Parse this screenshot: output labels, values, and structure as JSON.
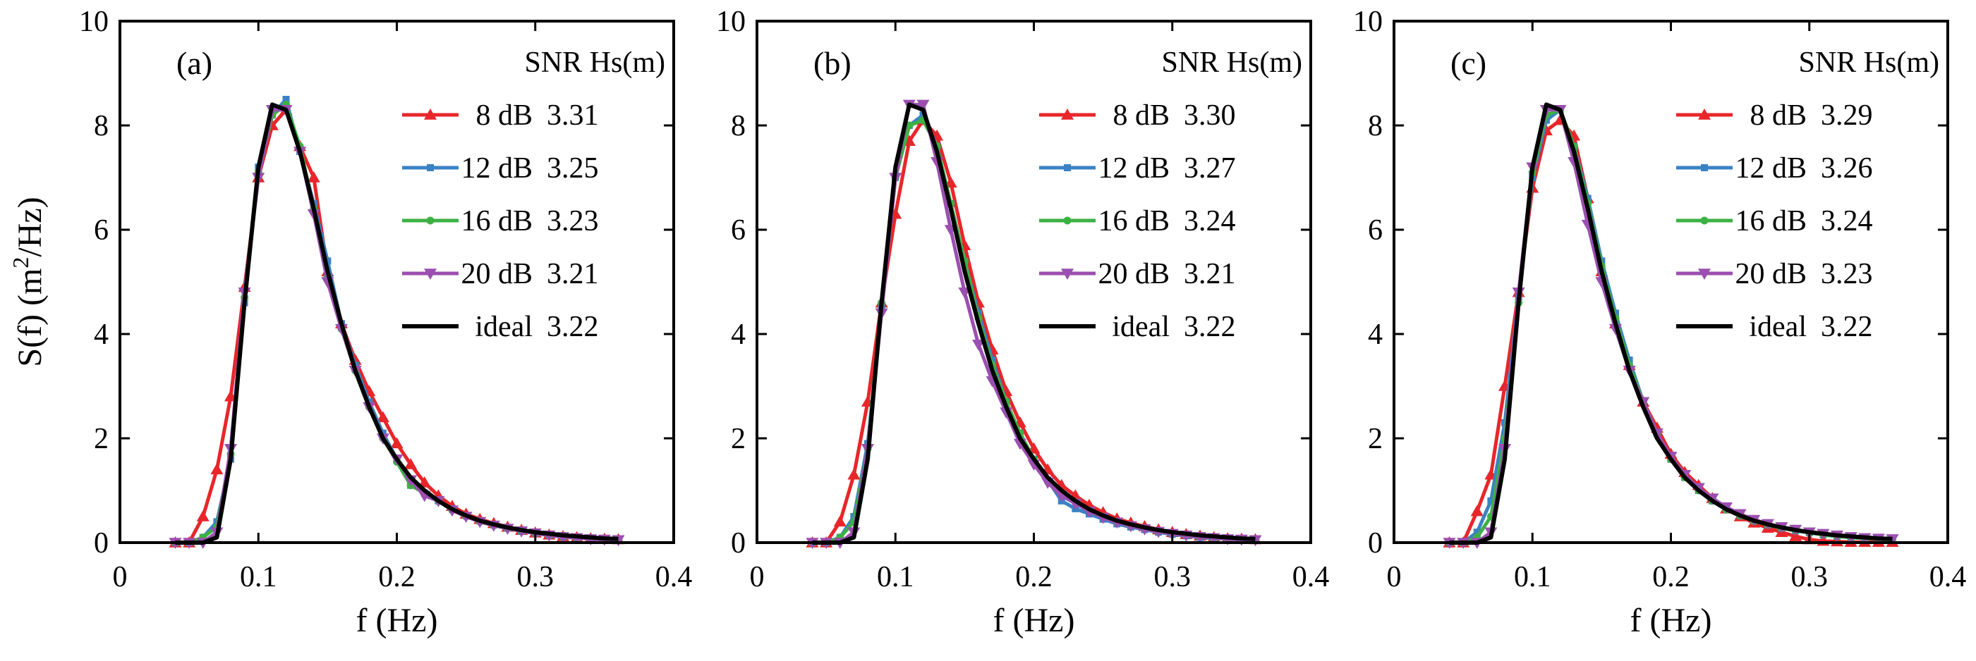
{
  "chart_data": [
    {
      "type": "line",
      "panel_label": "(a)",
      "xlabel": "f (Hz)",
      "ylabel": "S(f) (m2/Hz)",
      "xlim": [
        0,
        0.4
      ],
      "ylim": [
        0,
        10
      ],
      "xticks": [
        "0",
        "0.1",
        "0.2",
        "0.3",
        "0.4"
      ],
      "yticks": [
        "0",
        "2",
        "4",
        "6",
        "8",
        "10"
      ],
      "legend_title": "SNR Hs(m)",
      "legend_position": "top-right",
      "x": [
        0.04,
        0.05,
        0.06,
        0.07,
        0.08,
        0.09,
        0.1,
        0.11,
        0.12,
        0.13,
        0.14,
        0.15,
        0.16,
        0.17,
        0.18,
        0.19,
        0.2,
        0.21,
        0.22,
        0.23,
        0.24,
        0.25,
        0.26,
        0.27,
        0.28,
        0.29,
        0.3,
        0.31,
        0.32,
        0.33,
        0.34,
        0.35,
        0.36
      ],
      "series": [
        {
          "name": "8 dB",
          "hs": "3.31",
          "color": "#e8262a",
          "marker": "triangle-up",
          "values": [
            0,
            0,
            0.5,
            1.4,
            2.8,
            4.9,
            7.0,
            8.0,
            8.3,
            7.6,
            7.0,
            5.2,
            4.2,
            3.5,
            2.9,
            2.4,
            1.9,
            1.5,
            1.15,
            0.9,
            0.7,
            0.55,
            0.45,
            0.37,
            0.3,
            0.24,
            0.19,
            0.15,
            0.12,
            0.1,
            0.08,
            0.07,
            0.06
          ]
        },
        {
          "name": "12 dB",
          "hs": "3.25",
          "color": "#3a82c4",
          "marker": "square",
          "values": [
            0,
            0,
            0.1,
            0.4,
            1.6,
            4.6,
            7.2,
            8.2,
            8.5,
            7.5,
            6.5,
            5.4,
            4.2,
            3.4,
            2.7,
            2.1,
            1.6,
            1.1,
            0.95,
            0.8,
            0.65,
            0.52,
            0.42,
            0.34,
            0.28,
            0.22,
            0.18,
            0.14,
            0.11,
            0.09,
            0.07,
            0.06,
            0.05
          ]
        },
        {
          "name": "16 dB",
          "hs": "3.23",
          "color": "#3cb143",
          "marker": "circle",
          "values": [
            0,
            0,
            0.1,
            0.3,
            1.7,
            4.7,
            7.1,
            8.2,
            8.4,
            7.6,
            6.4,
            5.1,
            4.1,
            3.3,
            2.6,
            2.0,
            1.55,
            1.1,
            0.95,
            0.8,
            0.62,
            0.5,
            0.4,
            0.33,
            0.27,
            0.22,
            0.18,
            0.14,
            0.11,
            0.09,
            0.07,
            0.06,
            0.05
          ]
        },
        {
          "name": "20 dB",
          "hs": "3.21",
          "color": "#9b4fb0",
          "marker": "triangle-down",
          "values": [
            0,
            0,
            0,
            0.2,
            1.8,
            4.8,
            7.0,
            8.3,
            8.3,
            7.5,
            6.3,
            5.0,
            4.1,
            3.3,
            2.6,
            2.0,
            1.6,
            1.2,
            0.9,
            0.8,
            0.62,
            0.5,
            0.4,
            0.33,
            0.27,
            0.22,
            0.18,
            0.14,
            0.11,
            0.09,
            0.07,
            0.06,
            0.05
          ]
        },
        {
          "name": "ideal",
          "hs": "3.22",
          "color": "#000000",
          "marker": "none",
          "values": [
            0,
            0,
            0,
            0.1,
            1.6,
            4.6,
            7.2,
            8.4,
            8.3,
            7.5,
            6.4,
            5.2,
            4.2,
            3.3,
            2.6,
            2.0,
            1.6,
            1.25,
            1.0,
            0.8,
            0.64,
            0.52,
            0.42,
            0.35,
            0.29,
            0.24,
            0.2,
            0.17,
            0.14,
            0.12,
            0.1,
            0.08,
            0.07
          ]
        }
      ]
    },
    {
      "type": "line",
      "panel_label": "(b)",
      "xlabel": "f (Hz)",
      "ylabel": "",
      "xlim": [
        0,
        0.4
      ],
      "ylim": [
        0,
        10
      ],
      "xticks": [
        "0",
        "0.1",
        "0.2",
        "0.3",
        "0.4"
      ],
      "yticks": [
        "0",
        "2",
        "4",
        "6",
        "8",
        "10"
      ],
      "legend_title": "SNR Hs(m)",
      "legend_position": "top-right",
      "x": [
        0.04,
        0.05,
        0.06,
        0.07,
        0.08,
        0.09,
        0.1,
        0.11,
        0.12,
        0.13,
        0.14,
        0.15,
        0.16,
        0.17,
        0.18,
        0.19,
        0.2,
        0.21,
        0.22,
        0.23,
        0.24,
        0.25,
        0.26,
        0.27,
        0.28,
        0.29,
        0.3,
        0.31,
        0.32,
        0.33,
        0.34,
        0.35,
        0.36
      ],
      "series": [
        {
          "name": "8 dB",
          "hs": "3.30",
          "color": "#e8262a",
          "marker": "triangle-up",
          "values": [
            0,
            0,
            0.4,
            1.3,
            2.7,
            4.6,
            6.3,
            7.7,
            8.1,
            7.8,
            6.9,
            5.7,
            4.6,
            3.7,
            2.9,
            2.3,
            1.8,
            1.4,
            1.1,
            0.9,
            0.72,
            0.58,
            0.46,
            0.38,
            0.31,
            0.25,
            0.2,
            0.16,
            0.13,
            0.1,
            0.08,
            0.07,
            0.06
          ]
        },
        {
          "name": "12 dB",
          "hs": "3.27",
          "color": "#3a82c4",
          "marker": "square",
          "values": [
            0,
            0,
            0.1,
            0.5,
            1.9,
            4.5,
            7.0,
            8.0,
            8.2,
            7.6,
            6.5,
            5.4,
            4.4,
            3.5,
            2.7,
            2.1,
            1.6,
            1.2,
            0.8,
            0.65,
            0.55,
            0.45,
            0.36,
            0.3,
            0.25,
            0.2,
            0.16,
            0.13,
            0.1,
            0.08,
            0.07,
            0.06,
            0.05
          ]
        },
        {
          "name": "16 dB",
          "hs": "3.24",
          "color": "#3cb143",
          "marker": "circle",
          "values": [
            0,
            0,
            0.1,
            0.4,
            1.8,
            4.6,
            7.0,
            8.0,
            8.1,
            7.6,
            6.5,
            5.4,
            4.3,
            3.4,
            2.7,
            2.1,
            1.6,
            1.2,
            0.95,
            0.78,
            0.62,
            0.5,
            0.4,
            0.33,
            0.27,
            0.22,
            0.18,
            0.14,
            0.11,
            0.09,
            0.07,
            0.06,
            0.05
          ]
        },
        {
          "name": "20 dB",
          "hs": "3.21",
          "color": "#9b4fb0",
          "marker": "triangle-down",
          "values": [
            0,
            0,
            0,
            0.2,
            1.8,
            4.4,
            7.0,
            8.4,
            8.4,
            7.3,
            6.0,
            4.8,
            3.8,
            3.1,
            2.5,
            1.9,
            1.5,
            1.15,
            0.9,
            0.75,
            0.6,
            0.48,
            0.39,
            0.32,
            0.26,
            0.21,
            0.17,
            0.14,
            0.11,
            0.09,
            0.07,
            0.06,
            0.05
          ]
        },
        {
          "name": "ideal",
          "hs": "3.22",
          "color": "#000000",
          "marker": "none",
          "values": [
            0,
            0,
            0,
            0.1,
            1.6,
            4.6,
            7.2,
            8.4,
            8.3,
            7.5,
            6.4,
            5.2,
            4.2,
            3.3,
            2.6,
            2.0,
            1.6,
            1.25,
            1.0,
            0.8,
            0.64,
            0.52,
            0.42,
            0.35,
            0.29,
            0.24,
            0.2,
            0.17,
            0.14,
            0.12,
            0.1,
            0.08,
            0.07
          ]
        }
      ]
    },
    {
      "type": "line",
      "panel_label": "(c)",
      "xlabel": "f (Hz)",
      "ylabel": "",
      "xlim": [
        0,
        0.4
      ],
      "ylim": [
        0,
        10
      ],
      "xticks": [
        "0",
        "0.1",
        "0.2",
        "0.3",
        "0.4"
      ],
      "yticks": [
        "0",
        "2",
        "4",
        "6",
        "8",
        "10"
      ],
      "legend_title": "SNR Hs(m)",
      "legend_position": "top-right",
      "x": [
        0.04,
        0.05,
        0.06,
        0.07,
        0.08,
        0.09,
        0.1,
        0.11,
        0.12,
        0.13,
        0.14,
        0.15,
        0.16,
        0.17,
        0.18,
        0.19,
        0.2,
        0.21,
        0.22,
        0.23,
        0.24,
        0.25,
        0.26,
        0.27,
        0.28,
        0.29,
        0.3,
        0.31,
        0.32,
        0.33,
        0.34,
        0.35,
        0.36
      ],
      "series": [
        {
          "name": "8 dB",
          "hs": "3.29",
          "color": "#e8262a",
          "marker": "triangle-up",
          "values": [
            0,
            0,
            0.6,
            1.3,
            3.0,
            4.8,
            6.8,
            7.9,
            8.1,
            7.8,
            6.6,
            5.2,
            4.2,
            3.4,
            2.7,
            2.2,
            1.7,
            1.35,
            1.1,
            0.85,
            0.65,
            0.5,
            0.38,
            0.28,
            0.2,
            0.12,
            0.06,
            0.03,
            0.02,
            0.01,
            0.01,
            0.01,
            0.01
          ]
        },
        {
          "name": "12 dB",
          "hs": "3.26",
          "color": "#3a82c4",
          "marker": "square",
          "values": [
            0,
            0,
            0.2,
            0.8,
            2.3,
            4.7,
            7.0,
            8.1,
            8.3,
            7.6,
            6.6,
            5.4,
            4.4,
            3.5,
            2.7,
            2.1,
            1.6,
            1.25,
            1.0,
            0.8,
            0.64,
            0.52,
            0.42,
            0.34,
            0.28,
            0.23,
            0.19,
            0.15,
            0.12,
            0.1,
            0.08,
            0.07,
            0.06
          ]
        },
        {
          "name": "16 dB",
          "hs": "3.24",
          "color": "#3cb143",
          "marker": "circle",
          "values": [
            0,
            0,
            0.1,
            0.5,
            2.0,
            4.6,
            7.1,
            8.2,
            8.3,
            7.6,
            6.5,
            5.3,
            4.3,
            3.4,
            2.7,
            2.1,
            1.6,
            1.25,
            1.0,
            0.8,
            0.63,
            0.51,
            0.41,
            0.34,
            0.28,
            0.23,
            0.19,
            0.15,
            0.12,
            0.1,
            0.08,
            0.07,
            0.06
          ]
        },
        {
          "name": "20 dB",
          "hs": "3.23",
          "color": "#9b4fb0",
          "marker": "triangle-down",
          "values": [
            0,
            0,
            0,
            0.2,
            1.8,
            4.8,
            7.2,
            8.3,
            8.3,
            7.3,
            6.1,
            5.0,
            4.1,
            3.3,
            2.7,
            2.1,
            1.65,
            1.3,
            1.05,
            0.85,
            0.68,
            0.55,
            0.44,
            0.36,
            0.3,
            0.25,
            0.2,
            0.17,
            0.14,
            0.11,
            0.09,
            0.08,
            0.07
          ]
        },
        {
          "name": "ideal",
          "hs": "3.22",
          "color": "#000000",
          "marker": "none",
          "values": [
            0,
            0,
            0,
            0.1,
            1.6,
            4.6,
            7.2,
            8.4,
            8.3,
            7.5,
            6.4,
            5.2,
            4.2,
            3.3,
            2.6,
            2.0,
            1.6,
            1.25,
            1.0,
            0.8,
            0.64,
            0.52,
            0.42,
            0.35,
            0.29,
            0.24,
            0.2,
            0.17,
            0.14,
            0.12,
            0.1,
            0.08,
            0.07
          ]
        }
      ]
    }
  ]
}
